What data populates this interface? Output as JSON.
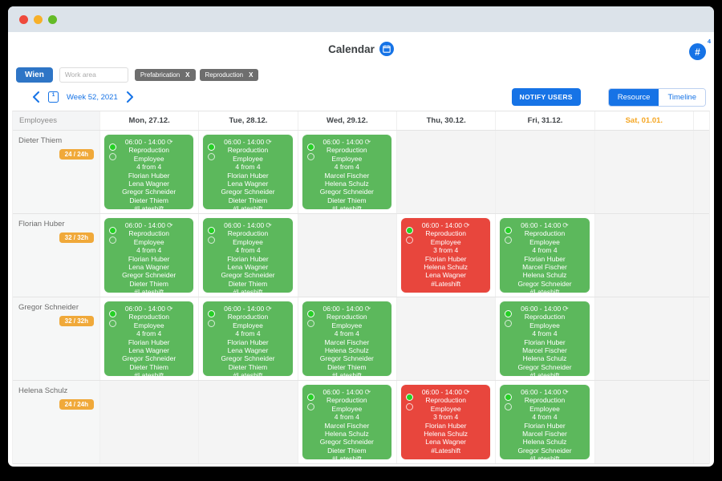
{
  "colors": {
    "accent_blue": "#1673e6",
    "shift_green": "#5cb85c",
    "shift_red": "#e8463d",
    "status_dot_green": "#25d025",
    "hours_badge_orange": "#f0a93a",
    "weekend_orange": "#f5a623",
    "tag_gray": "#6e6e6e"
  },
  "icons": {
    "recurring_glyph": "⟳"
  },
  "window": {
    "title": "Calendar"
  },
  "filters": {
    "location_button_label": "Wien",
    "work_area_placeholder": "Work area",
    "tags": [
      {
        "label": "Prefabrication",
        "remove_label": "X"
      },
      {
        "label": "Reproduction",
        "remove_label": "X"
      }
    ]
  },
  "toolbar": {
    "week_label": "Week 52, 2021",
    "calendar_icon_day": "1",
    "notify_button_label": "NOTIFY USERS",
    "view_toggle": [
      {
        "label": "Resource",
        "active": true
      },
      {
        "label": "Timeline",
        "active": false
      }
    ],
    "channels_button_label": "#",
    "channels_badge": "4"
  },
  "grid": {
    "corner_label": "Employees",
    "day_headers": [
      {
        "label": "Mon, 27.12.",
        "weekend": false
      },
      {
        "label": "Tue, 28.12.",
        "weekend": false
      },
      {
        "label": "Wed, 29.12.",
        "weekend": false
      },
      {
        "label": "Thu, 30.12.",
        "weekend": false
      },
      {
        "label": "Fri, 31.12.",
        "weekend": false
      },
      {
        "label": "Sat, 01.01.",
        "weekend": true
      }
    ],
    "rows": [
      {
        "employee": "Dieter Thiem",
        "hours": "24 / 24h",
        "cells": [
          {
            "time": "06:00 - 14:00",
            "department": "Reproduction",
            "role": "Employee",
            "staffing": "4 from 4",
            "names": [
              "Florian Huber",
              "Lena Wagner",
              "Gregor Schneider",
              "Dieter Thiem"
            ],
            "hashtag": "#Lateshift",
            "status": "full"
          },
          {
            "time": "06:00 - 14:00",
            "department": "Reproduction",
            "role": "Employee",
            "staffing": "4 from 4",
            "names": [
              "Florian Huber",
              "Lena Wagner",
              "Gregor Schneider",
              "Dieter Thiem"
            ],
            "hashtag": "#Lateshift",
            "status": "full"
          },
          {
            "time": "06:00 - 14:00",
            "department": "Reproduction",
            "role": "Employee",
            "staffing": "4 from 4",
            "names": [
              "Marcel Fischer",
              "Helena Schulz",
              "Gregor Schneider",
              "Dieter Thiem"
            ],
            "hashtag": "#Lateshift",
            "status": "full"
          },
          null,
          null,
          null
        ]
      },
      {
        "employee": "Florian Huber",
        "hours": "32 / 32h",
        "cells": [
          {
            "time": "06:00 - 14:00",
            "department": "Reproduction",
            "role": "Employee",
            "staffing": "4 from 4",
            "names": [
              "Florian Huber",
              "Lena Wagner",
              "Gregor Schneider",
              "Dieter Thiem"
            ],
            "hashtag": "#Lateshift",
            "status": "full"
          },
          {
            "time": "06:00 - 14:00",
            "department": "Reproduction",
            "role": "Employee",
            "staffing": "4 from 4",
            "names": [
              "Florian Huber",
              "Lena Wagner",
              "Gregor Schneider",
              "Dieter Thiem"
            ],
            "hashtag": "#Lateshift",
            "status": "full"
          },
          null,
          {
            "time": "06:00 - 14:00",
            "department": "Reproduction",
            "role": "Employee",
            "staffing": "3 from 4",
            "names": [
              "Florian Huber",
              "Helena Schulz",
              "Lena Wagner"
            ],
            "hashtag": "#Lateshift",
            "status": "understaffed"
          },
          {
            "time": "06:00 - 14:00",
            "department": "Reproduction",
            "role": "Employee",
            "staffing": "4 from 4",
            "names": [
              "Florian Huber",
              "Marcel Fischer",
              "Helena Schulz",
              "Gregor Schneider"
            ],
            "hashtag": "#Lateshift",
            "status": "full"
          },
          null
        ]
      },
      {
        "employee": "Gregor Schneider",
        "hours": "32 / 32h",
        "cells": [
          {
            "time": "06:00 - 14:00",
            "department": "Reproduction",
            "role": "Employee",
            "staffing": "4 from 4",
            "names": [
              "Florian Huber",
              "Lena Wagner",
              "Gregor Schneider",
              "Dieter Thiem"
            ],
            "hashtag": "#Lateshift",
            "status": "full"
          },
          {
            "time": "06:00 - 14:00",
            "department": "Reproduction",
            "role": "Employee",
            "staffing": "4 from 4",
            "names": [
              "Florian Huber",
              "Lena Wagner",
              "Gregor Schneider",
              "Dieter Thiem"
            ],
            "hashtag": "#Lateshift",
            "status": "full"
          },
          {
            "time": "06:00 - 14:00",
            "department": "Reproduction",
            "role": "Employee",
            "staffing": "4 from 4",
            "names": [
              "Marcel Fischer",
              "Helena Schulz",
              "Gregor Schneider",
              "Dieter Thiem"
            ],
            "hashtag": "#Lateshift",
            "status": "full"
          },
          null,
          {
            "time": "06:00 - 14:00",
            "department": "Reproduction",
            "role": "Employee",
            "staffing": "4 from 4",
            "names": [
              "Florian Huber",
              "Marcel Fischer",
              "Helena Schulz",
              "Gregor Schneider"
            ],
            "hashtag": "#Lateshift",
            "status": "full"
          },
          null
        ]
      },
      {
        "employee": "Helena Schulz",
        "hours": "24 / 24h",
        "cells": [
          null,
          null,
          {
            "time": "06:00 - 14:00",
            "department": "Reproduction",
            "role": "Employee",
            "staffing": "4 from 4",
            "names": [
              "Marcel Fischer",
              "Helena Schulz",
              "Gregor Schneider",
              "Dieter Thiem"
            ],
            "hashtag": "#Lateshift",
            "status": "full"
          },
          {
            "time": "06:00 - 14:00",
            "department": "Reproduction",
            "role": "Employee",
            "staffing": "3 from 4",
            "names": [
              "Florian Huber",
              "Helena Schulz",
              "Lena Wagner"
            ],
            "hashtag": "#Lateshift",
            "status": "understaffed"
          },
          {
            "time": "06:00 - 14:00",
            "department": "Reproduction",
            "role": "Employee",
            "staffing": "4 from 4",
            "names": [
              "Florian Huber",
              "Marcel Fischer",
              "Helena Schulz",
              "Gregor Schneider"
            ],
            "hashtag": "#Lateshift",
            "status": "full"
          },
          null
        ]
      }
    ]
  }
}
